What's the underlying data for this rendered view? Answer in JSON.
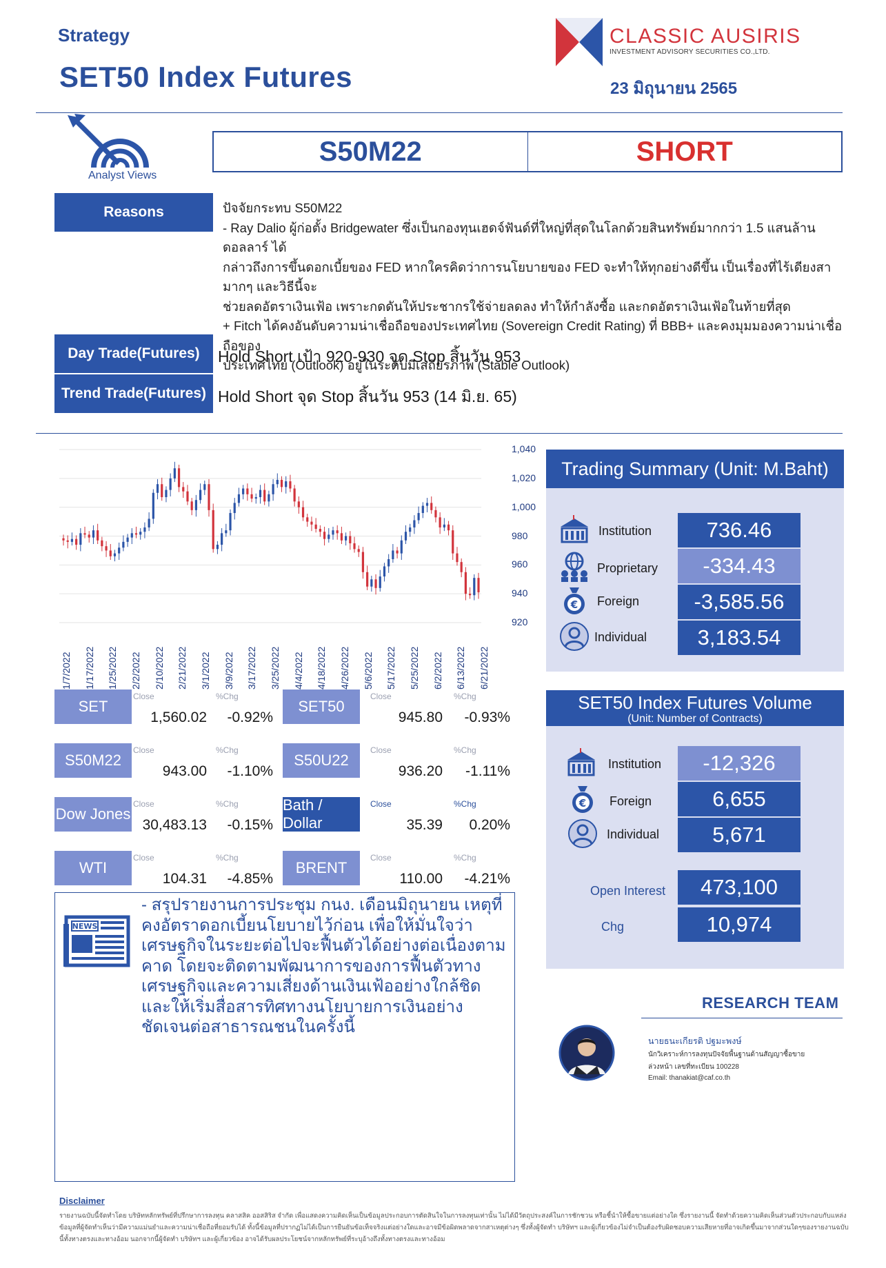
{
  "header": {
    "category": "Strategy",
    "title": "SET50 Index Futures",
    "brand_name": "CLASSIC AUSIRIS",
    "brand_sub": "INVESTMENT ADVISORY SECURITIES CO.,LTD.",
    "date": "23 มิถุนายน 2565",
    "analyst_views_label": "Analyst Views"
  },
  "signal": {
    "symbol": "S50M22",
    "position": "SHORT"
  },
  "reasons": {
    "label": "Reasons",
    "lines": [
      "ปัจจัยกระทบ S50M22",
      "- Ray Dalio ผู้ก่อตั้ง Bridgewater ซึ่งเป็นกองทุนเฮดจ์ฟันด์ที่ใหญ่ที่สุดในโลกด้วยสินทรัพย์มากกว่า 1.5 แสนล้านดอลลาร์ ได้",
      "กล่าวถึงการขึ้นดอกเบี้ยของ FED หากใครคิดว่าการนโยบายของ FED จะทำให้ทุกอย่างดีขึ้น เป็นเรื่องที่ไร้เดียงสามากๆ และวิธีนี้จะ",
      "ช่วยลดอัตราเงินเฟ้อ เพราะกดดันให้ประชากรใช้จ่ายลดลง ทำให้กำลังซื้อ และกดอัตราเงินเฟ้อในท้ายที่สุด",
      "+ Fitch ได้คงอันดับความน่าเชื่อถือของประเทศไทย (Sovereign Credit Rating) ที่ BBB+ และคงมุมมองความน่าเชื่อถือของ",
      "ประเทศไทย (Outlook) อยู่ในระดับมีเสถียรภาพ (Stable Outlook)"
    ]
  },
  "trades": {
    "day_label": "Day Trade(Futures)",
    "day_text": "Hold Short เป้า 920-930 จุด Stop สิ้นวัน 953",
    "trend_label": "Trend Trade(Futures)",
    "trend_text": "Hold Short จุด Stop สิ้นวัน 953 (14 มิ.ย. 65)"
  },
  "chart_data": {
    "type": "candlestick",
    "ylim": [
      920,
      1040
    ],
    "y_ticks": [
      "1,040",
      "1,020",
      "1,000",
      "980",
      "960",
      "940",
      "920"
    ],
    "x_tick_labels": [
      "1/7/2022",
      "1/17/2022",
      "1/25/2022",
      "2/2/2022",
      "2/10/2022",
      "2/21/2022",
      "3/1/2022",
      "3/9/2022",
      "3/17/2022",
      "3/25/2022",
      "4/4/2022",
      "4/18/2022",
      "4/26/2022",
      "5/6/2022",
      "5/17/2022",
      "5/25/2022",
      "6/2/2022",
      "6/13/2022",
      "6/21/2022"
    ],
    "close": [
      977,
      976,
      978,
      974,
      982,
      981,
      979,
      984,
      977,
      973,
      970,
      966,
      968,
      972,
      976,
      979,
      982,
      981,
      983,
      986,
      992,
      1010,
      1016,
      1007,
      1012,
      1020,
      1027,
      1014,
      1011,
      1004,
      998,
      1005,
      1012,
      1016,
      998,
      971,
      974,
      982,
      984,
      996,
      1003,
      1009,
      1013,
      1009,
      1006,
      1007,
      1012,
      1004,
      1009,
      1016,
      1019,
      1014,
      1018,
      1013,
      1004,
      1000,
      993,
      990,
      988,
      985,
      983,
      978,
      981,
      984,
      982,
      977,
      980,
      975,
      971,
      969,
      955,
      945,
      950,
      944,
      952,
      959,
      964,
      970,
      968,
      977,
      983,
      986,
      991,
      996,
      1001,
      1003,
      998,
      993,
      986,
      988,
      984,
      968,
      962,
      955,
      940,
      939,
      951,
      941
    ]
  },
  "market": [
    {
      "name": "SET",
      "close_label": "Close",
      "chg_label": "%Chg",
      "close": "1,560.02",
      "chg": "-0.92%"
    },
    {
      "name": "SET50",
      "close_label": "Close",
      "chg_label": "%Chg",
      "close": "945.80",
      "chg": "-0.93%"
    },
    {
      "name": "S50M22",
      "close_label": "Close",
      "chg_label": "%Chg",
      "close": "943.00",
      "chg": "-1.10%"
    },
    {
      "name": "S50U22",
      "close_label": "Close",
      "chg_label": "%Chg",
      "close": "936.20",
      "chg": "-1.11%"
    },
    {
      "name": "Dow Jones",
      "close_label": "Close",
      "chg_label": "%Chg",
      "close": "30,483.13",
      "chg": "-0.15%"
    },
    {
      "name": "Bath / Dollar",
      "close_label": "Close",
      "chg_label": "%Chg",
      "close": "35.39",
      "chg": "0.20%"
    },
    {
      "name": "WTI",
      "close_label": "Close",
      "chg_label": "%Chg",
      "close": "104.31",
      "chg": "-4.85%"
    },
    {
      "name": "BRENT",
      "close_label": "Close",
      "chg_label": "%Chg",
      "close": "110.00",
      "chg": "-4.21%"
    }
  ],
  "trading_summary": {
    "title": "Trading Summary (Unit: M.Baht)",
    "rows": [
      {
        "label": "Institution",
        "value": "736.46",
        "icon": "building-icon"
      },
      {
        "label": "Proprietary",
        "value": "-334.43",
        "icon": "globe-people-icon"
      },
      {
        "label": "Foreign",
        "value": "-3,585.56",
        "icon": "euro-bag-icon"
      },
      {
        "label": "Individual",
        "value": "3,183.54",
        "icon": "person-icon"
      }
    ]
  },
  "volume": {
    "title": "SET50 Index Futures Volume",
    "subtitle": "(Unit: Number of Contracts)",
    "rows": [
      {
        "label": "Institution",
        "value": "-12,326",
        "icon": "building-icon"
      },
      {
        "label": "Foreign",
        "value": "6,655",
        "icon": "euro-bag-icon"
      },
      {
        "label": "Individual",
        "value": "5,671",
        "icon": "person-icon"
      }
    ],
    "open_interest_label": "Open Interest",
    "open_interest": "473,100",
    "chg_label": "Chg",
    "chg": "10,974"
  },
  "news": {
    "icon_label": "NEWS",
    "text": "- สรุปรายงานการประชุม กนง. เดือนมิถุนายน เหตุที่คงอัตราดอกเบี้ยนโยบายไว้ก่อน เพื่อให้มั่นใจว่าเศรษฐกิจในระยะต่อไปจะฟื้นตัวได้อย่างต่อเนื่องตามคาด โดยจะติดตามพัฒนาการของการฟื้นตัวทางเศรษฐกิจและความเสี่ยงด้านเงินเฟ้ออย่างใกล้ชิด และให้เริ่มสื่อสารทิศทางนโยบายการเงินอย่างชัดเจนต่อสาธารณชนในครั้งนี้"
  },
  "research": {
    "title": "RESEARCH TEAM",
    "name": "นายธนะเกียรติ ปฐมะพงษ์",
    "role": "นักวิเคราะห์การลงทุนปัจจัยพื้นฐานด้านสัญญาซื้อขาย",
    "license": "ล่วงหน้า เลขที่ทะเบียน 100228",
    "email": "Email: thanakiat@caf.co.th"
  },
  "disclaimer": {
    "title": "Disclaimer",
    "text": "รายงานฉบับนี้จัดทำโดย บริษัทหลักทรัพย์ที่ปรึกษาการลงทุน คลาสสิค ออสสิริส จำกัด เพื่อแสดงความคิดเห็นเป็นข้อมูลประกอบการตัดสินใจในการลงทุนเท่านั้น ไม่ได้มีวัตถุประสงค์ในการชักชวน หรือชี้นำให้ซื้อขายแต่อย่างใด ซึ่งรายงานนี้ จัดทำด้วยความคิดเห็นส่วนตัวประกอบกับแหล่งข้อมูลที่ผู้จัดทำเห็นว่ามีความแม่นยำและความน่าเชื่อถือที่ยอมรับได้ ทั้งนี้ข้อมูลที่ปรากฏไม่ได้เป็นการยืนยันข้อเท็จจริงแต่อย่างใดและอาจมีข้อผิดพลาดจากสาเหตุต่างๆ ซึ่งทั้งผู้จัดทำ บริษัทฯ และผู้เกี่ยวข้องไม่จำเป็นต้องรับผิดชอบความเสียหายที่อาจเกิดขึ้นมาจากส่วนใดๆของรายงานฉบับนี้ทั้งทางตรงและทางอ้อม นอกจากนี้ผู้จัดทำ บริษัทฯ และผู้เกี่ยวข้อง อาจได้รับผลประโยชน์จากหลักทรัพย์ที่ระบุอ้างถึงทั้งทางตรงและทางอ้อม"
  }
}
